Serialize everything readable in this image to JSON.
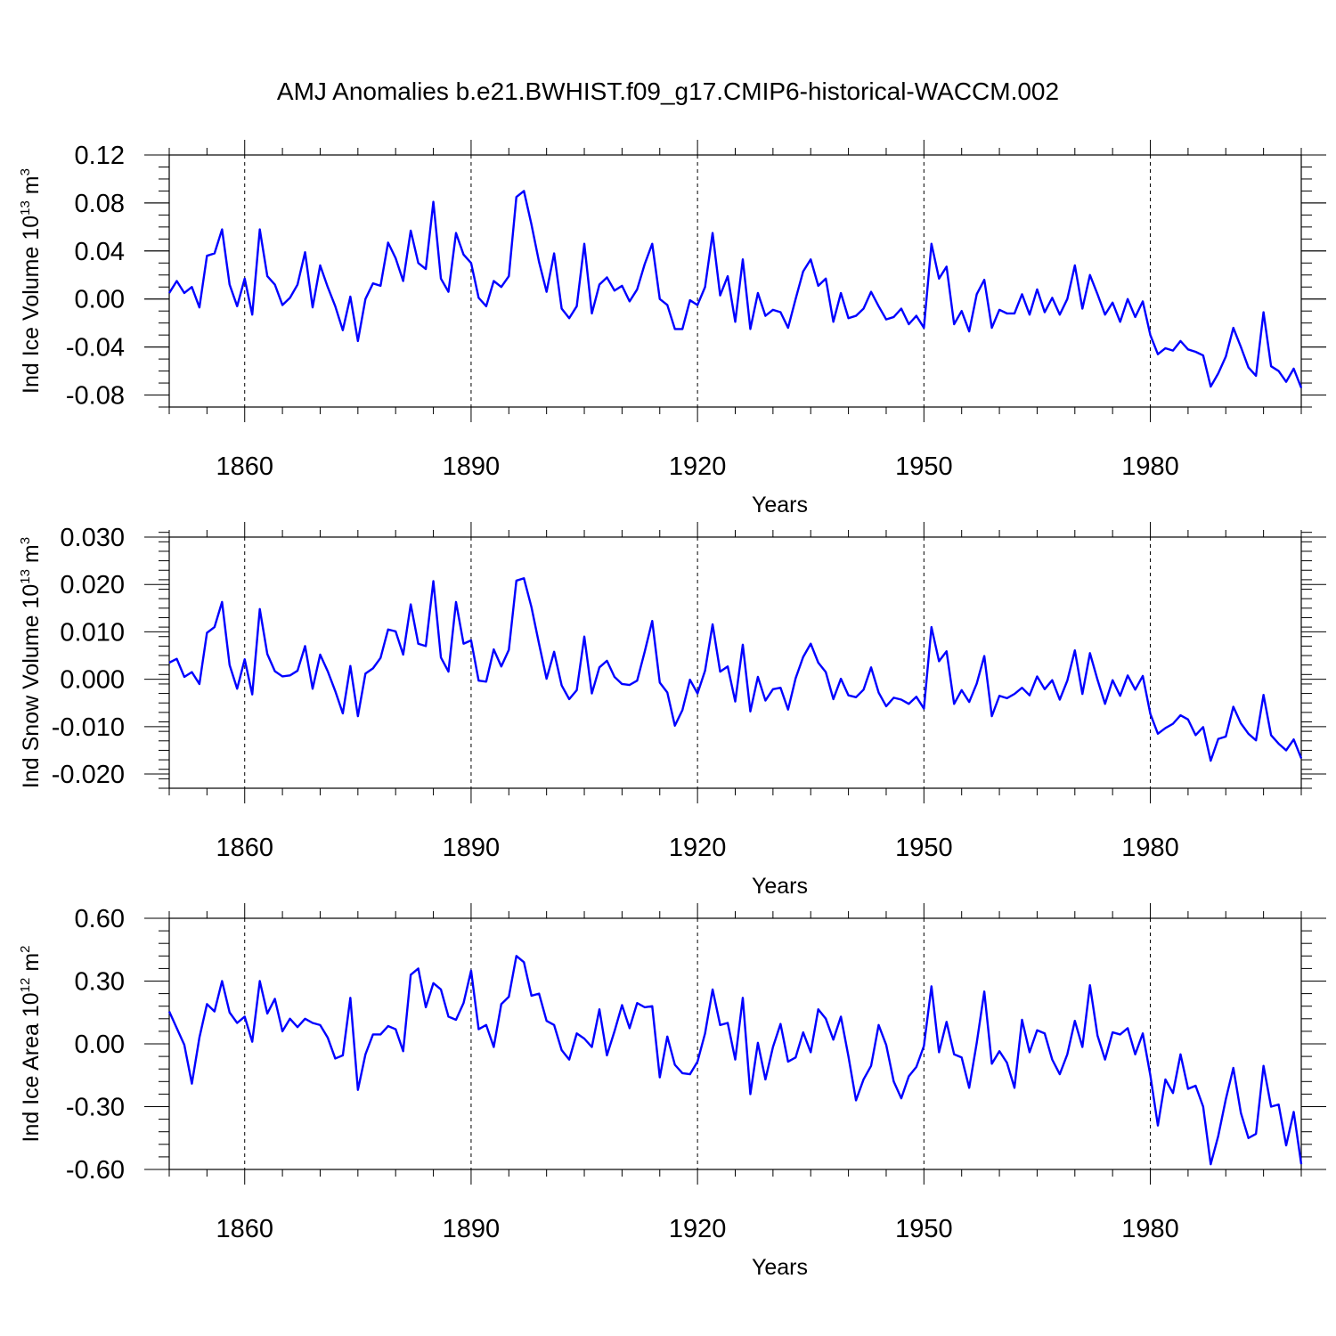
{
  "title": "AMJ Anomalies b.e21.BWHIST.f09_g17.CMIP6-historical-WACCM.002",
  "colors": {
    "line": "#0000ff",
    "axis": "#000000",
    "grid": "#000000",
    "background": "#ffffff"
  },
  "chart_data": [
    {
      "type": "line",
      "ylabel": {
        "text": "Ind Ice Volume 10",
        "exponent": "13",
        "unit_base": " m",
        "unit_exponent": "3"
      },
      "xlabel": "Years",
      "xlim": [
        1850,
        2000
      ],
      "ylim": [
        -0.09,
        0.12
      ],
      "y_major_ticks": [
        0.12,
        0.08,
        0.04,
        0.0,
        -0.04,
        -0.08
      ],
      "y_tick_labels": [
        "0.12",
        "0.08",
        "0.04",
        "0.00",
        "-0.04",
        "-0.08"
      ],
      "y_minor_step": 0.01,
      "x_major_ticks": [
        1860,
        1890,
        1920,
        1950,
        1980
      ],
      "x_tick_labels": [
        "1860",
        "1890",
        "1920",
        "1950",
        "1980"
      ],
      "x_minor_step": 5,
      "vertical_gridlines": "dashed at major x ticks",
      "series": [
        {
          "name": "Ind Ice Volume",
          "x_start": 1850,
          "x_step": 1,
          "values": [
            0.005,
            0.015,
            0.005,
            0.01,
            -0.007,
            0.036,
            0.038,
            0.058,
            0.012,
            -0.006,
            0.017,
            -0.013,
            0.058,
            0.019,
            0.012,
            -0.005,
            0.001,
            0.012,
            0.039,
            -0.007,
            0.028,
            0.01,
            -0.006,
            -0.026,
            0.002,
            -0.035,
            0.0,
            0.013,
            0.011,
            0.047,
            0.034,
            0.015,
            0.057,
            0.03,
            0.025,
            0.081,
            0.017,
            0.006,
            0.055,
            0.037,
            0.03,
            0.001,
            -0.006,
            0.015,
            0.01,
            0.019,
            0.085,
            0.09,
            0.062,
            0.031,
            0.006,
            0.038,
            -0.008,
            -0.016,
            -0.006,
            0.046,
            -0.012,
            0.012,
            0.018,
            0.007,
            0.011,
            -0.002,
            0.008,
            0.029,
            0.046,
            0.0,
            -0.005,
            -0.025,
            -0.025,
            -0.001,
            -0.005,
            0.01,
            0.055,
            0.003,
            0.019,
            -0.019,
            0.033,
            -0.025,
            0.005,
            -0.014,
            -0.009,
            -0.011,
            -0.024,
            0.0,
            0.023,
            0.033,
            0.011,
            0.017,
            -0.019,
            0.005,
            -0.016,
            -0.014,
            -0.008,
            0.006,
            -0.006,
            -0.017,
            -0.015,
            -0.008,
            -0.021,
            -0.014,
            -0.024,
            0.046,
            0.017,
            0.027,
            -0.021,
            -0.01,
            -0.027,
            0.004,
            0.016,
            -0.024,
            -0.009,
            -0.012,
            -0.012,
            0.004,
            -0.013,
            0.008,
            -0.011,
            0.001,
            -0.013,
            0.0,
            0.028,
            -0.008,
            0.02,
            0.004,
            -0.013,
            -0.003,
            -0.019,
            0.0,
            -0.015,
            -0.002,
            -0.03,
            -0.046,
            -0.041,
            -0.043,
            -0.035,
            -0.042,
            -0.044,
            -0.047,
            -0.073,
            -0.062,
            -0.048,
            -0.024,
            -0.04,
            -0.057,
            -0.064,
            -0.011,
            -0.056,
            -0.06,
            -0.069,
            -0.058,
            -0.074
          ]
        }
      ]
    },
    {
      "type": "line",
      "ylabel": {
        "text": "Ind Snow Volume 10",
        "exponent": "13",
        "unit_base": " m",
        "unit_exponent": "3"
      },
      "xlabel": "Years",
      "xlim": [
        1850,
        2000
      ],
      "ylim": [
        -0.023,
        0.03
      ],
      "y_major_ticks": [
        0.03,
        0.02,
        0.01,
        0.0,
        -0.01,
        -0.02
      ],
      "y_tick_labels": [
        "0.030",
        "0.020",
        "0.010",
        "0.000",
        "-0.010",
        "-0.020"
      ],
      "y_minor_step": 0.002,
      "x_major_ticks": [
        1860,
        1890,
        1920,
        1950,
        1980
      ],
      "x_tick_labels": [
        "1860",
        "1890",
        "1920",
        "1950",
        "1980"
      ],
      "x_minor_step": 5,
      "vertical_gridlines": "dashed at major x ticks",
      "series": [
        {
          "name": "Ind Snow Volume",
          "x_start": 1850,
          "x_step": 1,
          "values": [
            0.0035,
            0.0043,
            0.0005,
            0.0015,
            -0.001,
            0.0098,
            0.011,
            0.0163,
            0.003,
            -0.002,
            0.0042,
            -0.0032,
            0.0148,
            0.0053,
            0.0017,
            0.0006,
            0.0008,
            0.0018,
            0.007,
            -0.002,
            0.0052,
            0.0017,
            -0.0025,
            -0.0072,
            0.0028,
            -0.0078,
            0.0012,
            0.0023,
            0.0045,
            0.0105,
            0.0101,
            0.0052,
            0.0158,
            0.0075,
            0.007,
            0.0207,
            0.0046,
            0.0016,
            0.0163,
            0.0075,
            0.0082,
            -0.0003,
            -0.0005,
            0.0063,
            0.0027,
            0.0062,
            0.0208,
            0.0213,
            0.0152,
            0.0075,
            0.0001,
            0.0058,
            -0.0013,
            -0.0042,
            -0.0023,
            0.009,
            -0.003,
            0.0025,
            0.0039,
            0.0005,
            -0.001,
            -0.0012,
            -0.0003,
            0.0058,
            0.0123,
            -0.0007,
            -0.0028,
            -0.0098,
            -0.0065,
            -0.0001,
            -0.003,
            0.0018,
            0.0116,
            0.0016,
            0.0027,
            -0.0047,
            0.0073,
            -0.0068,
            0.0005,
            -0.0045,
            -0.0021,
            -0.0018,
            -0.0064,
            0.0002,
            0.0047,
            0.0075,
            0.0035,
            0.0015,
            -0.0042,
            0.0001,
            -0.0034,
            -0.0038,
            -0.0022,
            0.0025,
            -0.0028,
            -0.0057,
            -0.0039,
            -0.0043,
            -0.0052,
            -0.0037,
            -0.0062,
            0.011,
            0.0038,
            0.0059,
            -0.0052,
            -0.0023,
            -0.0048,
            -0.0009,
            0.0049,
            -0.0078,
            -0.0035,
            -0.004,
            -0.0031,
            -0.0018,
            -0.0034,
            0.0006,
            -0.0021,
            -0.0002,
            -0.0043,
            -0.0003,
            0.0061,
            -0.0031,
            0.0055,
            -0.0001,
            -0.0052,
            -0.0002,
            -0.0035,
            0.0008,
            -0.0022,
            0.0007,
            -0.0073,
            -0.0115,
            -0.0103,
            -0.0094,
            -0.0076,
            -0.0085,
            -0.0118,
            -0.0101,
            -0.0172,
            -0.0126,
            -0.0121,
            -0.0058,
            -0.0093,
            -0.0115,
            -0.0129,
            -0.0033,
            -0.0118,
            -0.0136,
            -0.015,
            -0.0127,
            -0.0167
          ]
        }
      ]
    },
    {
      "type": "line",
      "ylabel": {
        "text": "Ind Ice Area 10",
        "exponent": "12",
        "unit_base": " m",
        "unit_exponent": "2"
      },
      "xlabel": "Years",
      "xlim": [
        1850,
        2000
      ],
      "ylim": [
        -0.6,
        0.6
      ],
      "y_major_ticks": [
        0.6,
        0.3,
        0.0,
        -0.3,
        -0.6
      ],
      "y_tick_labels": [
        "0.60",
        "0.30",
        "0.00",
        "-0.30",
        "-0.60"
      ],
      "y_minor_step": 0.06,
      "x_major_ticks": [
        1860,
        1890,
        1920,
        1950,
        1980
      ],
      "x_tick_labels": [
        "1860",
        "1890",
        "1920",
        "1950",
        "1980"
      ],
      "x_minor_step": 5,
      "vertical_gridlines": "dashed at major x ticks",
      "series": [
        {
          "name": "Ind Ice Area",
          "x_start": 1850,
          "x_step": 1,
          "values": [
            0.155,
            0.075,
            -0.005,
            -0.19,
            0.03,
            0.19,
            0.155,
            0.3,
            0.15,
            0.1,
            0.13,
            0.01,
            0.3,
            0.145,
            0.215,
            0.06,
            0.12,
            0.08,
            0.12,
            0.1,
            0.09,
            0.03,
            -0.07,
            -0.055,
            0.22,
            -0.22,
            -0.05,
            0.045,
            0.045,
            0.085,
            0.07,
            -0.035,
            0.33,
            0.36,
            0.175,
            0.29,
            0.26,
            0.13,
            0.115,
            0.195,
            0.35,
            0.07,
            0.09,
            -0.015,
            0.19,
            0.225,
            0.42,
            0.39,
            0.23,
            0.24,
            0.11,
            0.09,
            -0.03,
            -0.075,
            0.05,
            0.025,
            -0.015,
            0.165,
            -0.055,
            0.06,
            0.185,
            0.075,
            0.195,
            0.175,
            0.18,
            -0.16,
            0.035,
            -0.1,
            -0.14,
            -0.145,
            -0.085,
            0.05,
            0.26,
            0.09,
            0.1,
            -0.075,
            0.22,
            -0.24,
            0.005,
            -0.17,
            -0.015,
            0.095,
            -0.085,
            -0.065,
            0.055,
            -0.04,
            0.165,
            0.12,
            0.02,
            0.13,
            -0.06,
            -0.27,
            -0.17,
            -0.105,
            0.09,
            -0.005,
            -0.18,
            -0.26,
            -0.155,
            -0.11,
            -0.01,
            0.275,
            -0.04,
            0.105,
            -0.05,
            -0.065,
            -0.21,
            0.005,
            0.25,
            -0.095,
            -0.035,
            -0.09,
            -0.21,
            0.115,
            -0.04,
            0.065,
            0.05,
            -0.075,
            -0.145,
            -0.05,
            0.11,
            -0.015,
            0.28,
            0.04,
            -0.075,
            0.055,
            0.045,
            0.075,
            -0.05,
            0.05,
            -0.15,
            -0.39,
            -0.17,
            -0.235,
            -0.05,
            -0.215,
            -0.2,
            -0.3,
            -0.575,
            -0.44,
            -0.265,
            -0.115,
            -0.33,
            -0.45,
            -0.43,
            -0.105,
            -0.3,
            -0.29,
            -0.485,
            -0.325,
            -0.575
          ]
        }
      ]
    }
  ]
}
